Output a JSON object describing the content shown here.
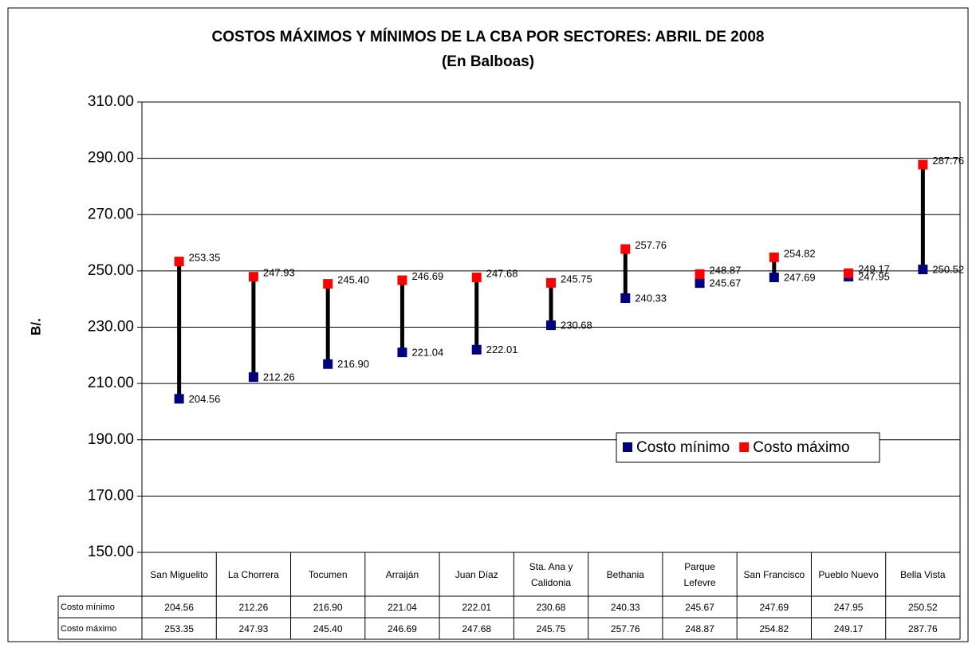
{
  "chart_data": {
    "type": "high-low",
    "title": "COSTOS MÁXIMOS Y MÍNIMOS DE LA CBA POR SECTORES:  ABRIL DE 2008",
    "subtitle": "(En Balboas)",
    "y_label": "B/.",
    "categories": [
      "San Miguelito",
      "La Chorrera",
      "Tocumen",
      "Arraiján",
      "Juan Díaz",
      "Sta. Ana y Calidonia",
      "Bethania",
      "Parque Lefevre",
      "San Francisco",
      "Pueblo Nuevo",
      "Bella Vista"
    ],
    "series": [
      {
        "name": "Costo mínimo",
        "color": "#000080",
        "values": [
          204.56,
          212.26,
          216.9,
          221.04,
          222.01,
          230.68,
          240.33,
          245.67,
          247.69,
          247.95,
          250.52
        ],
        "value_labels": [
          "204.56",
          "212.26",
          "216.90",
          "221.04",
          "222.01",
          "230.68",
          "240.33",
          "245.67",
          "247.69",
          "247.95",
          "250.52"
        ]
      },
      {
        "name": "Costo máximo",
        "color": "#ff0000",
        "values": [
          253.35,
          247.93,
          245.4,
          246.69,
          247.68,
          245.75,
          257.76,
          248.87,
          254.82,
          249.17,
          287.76
        ],
        "value_labels": [
          "253.35",
          "247.93",
          "245.40",
          "246.69",
          "247.68",
          "245.75",
          "257.76",
          "248.87",
          "254.82",
          "249.17",
          "287.76"
        ]
      }
    ],
    "ylim": [
      150,
      310
    ],
    "yticks": [
      {
        "value": 150,
        "label": "150.00"
      },
      {
        "value": 170,
        "label": "170.00"
      },
      {
        "value": 190,
        "label": "190.00"
      },
      {
        "value": 210,
        "label": "210.00"
      },
      {
        "value": 230,
        "label": "230.00"
      },
      {
        "value": 250,
        "label": "250.00"
      },
      {
        "value": 270,
        "label": "270.00"
      },
      {
        "value": 290,
        "label": "290.00"
      },
      {
        "value": 310,
        "label": "310.00"
      }
    ],
    "grid": true,
    "legend": "inside-lower-right",
    "data_table": true
  }
}
